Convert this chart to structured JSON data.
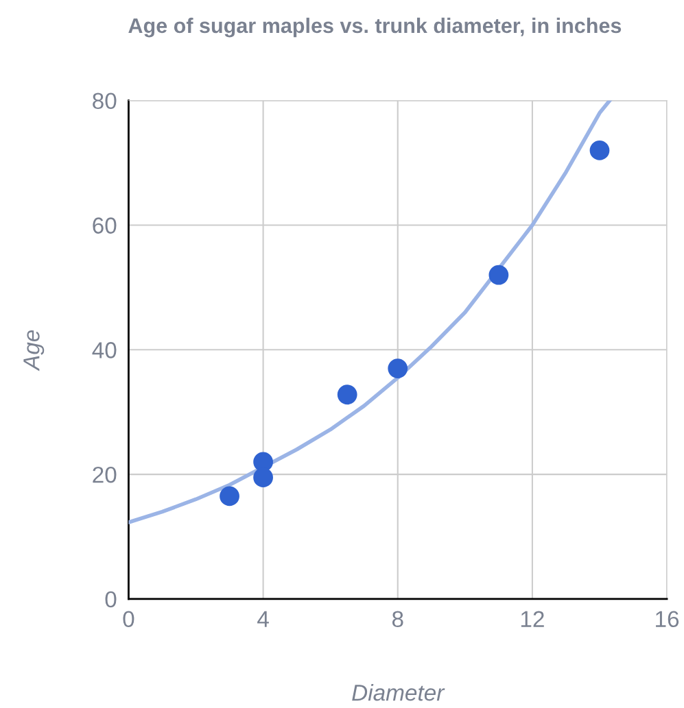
{
  "chart_data": {
    "type": "scatter",
    "title": "Age of sugar maples vs. trunk diameter, in inches",
    "xlabel": "Diameter",
    "ylabel": "Age",
    "series": [
      {
        "type": "line",
        "color": "#9bb4e6",
        "marker": "none",
        "line_style": "solid",
        "x": [
          0,
          1,
          2,
          3,
          5,
          6,
          7,
          8,
          9,
          10,
          12,
          13,
          14,
          14.3
        ],
        "values": [
          12.3,
          14,
          16,
          18.3,
          24,
          27.2,
          31,
          35.5,
          40.5,
          46,
          60,
          68.5,
          78,
          80
        ]
      },
      {
        "color": "#2f62d0",
        "marker": "circle",
        "x": [
          3,
          4,
          4,
          6.5,
          8,
          11,
          14
        ],
        "values": [
          16.5,
          22,
          19.5,
          32.8,
          37,
          52,
          72
        ]
      }
    ],
    "xlim": [
      0,
      16
    ],
    "xticks": [
      0,
      4,
      8,
      12,
      16
    ],
    "ylim": [
      0,
      80
    ],
    "yticks": [
      0,
      20,
      40,
      60,
      80
    ],
    "grid": true,
    "legend": false
  }
}
